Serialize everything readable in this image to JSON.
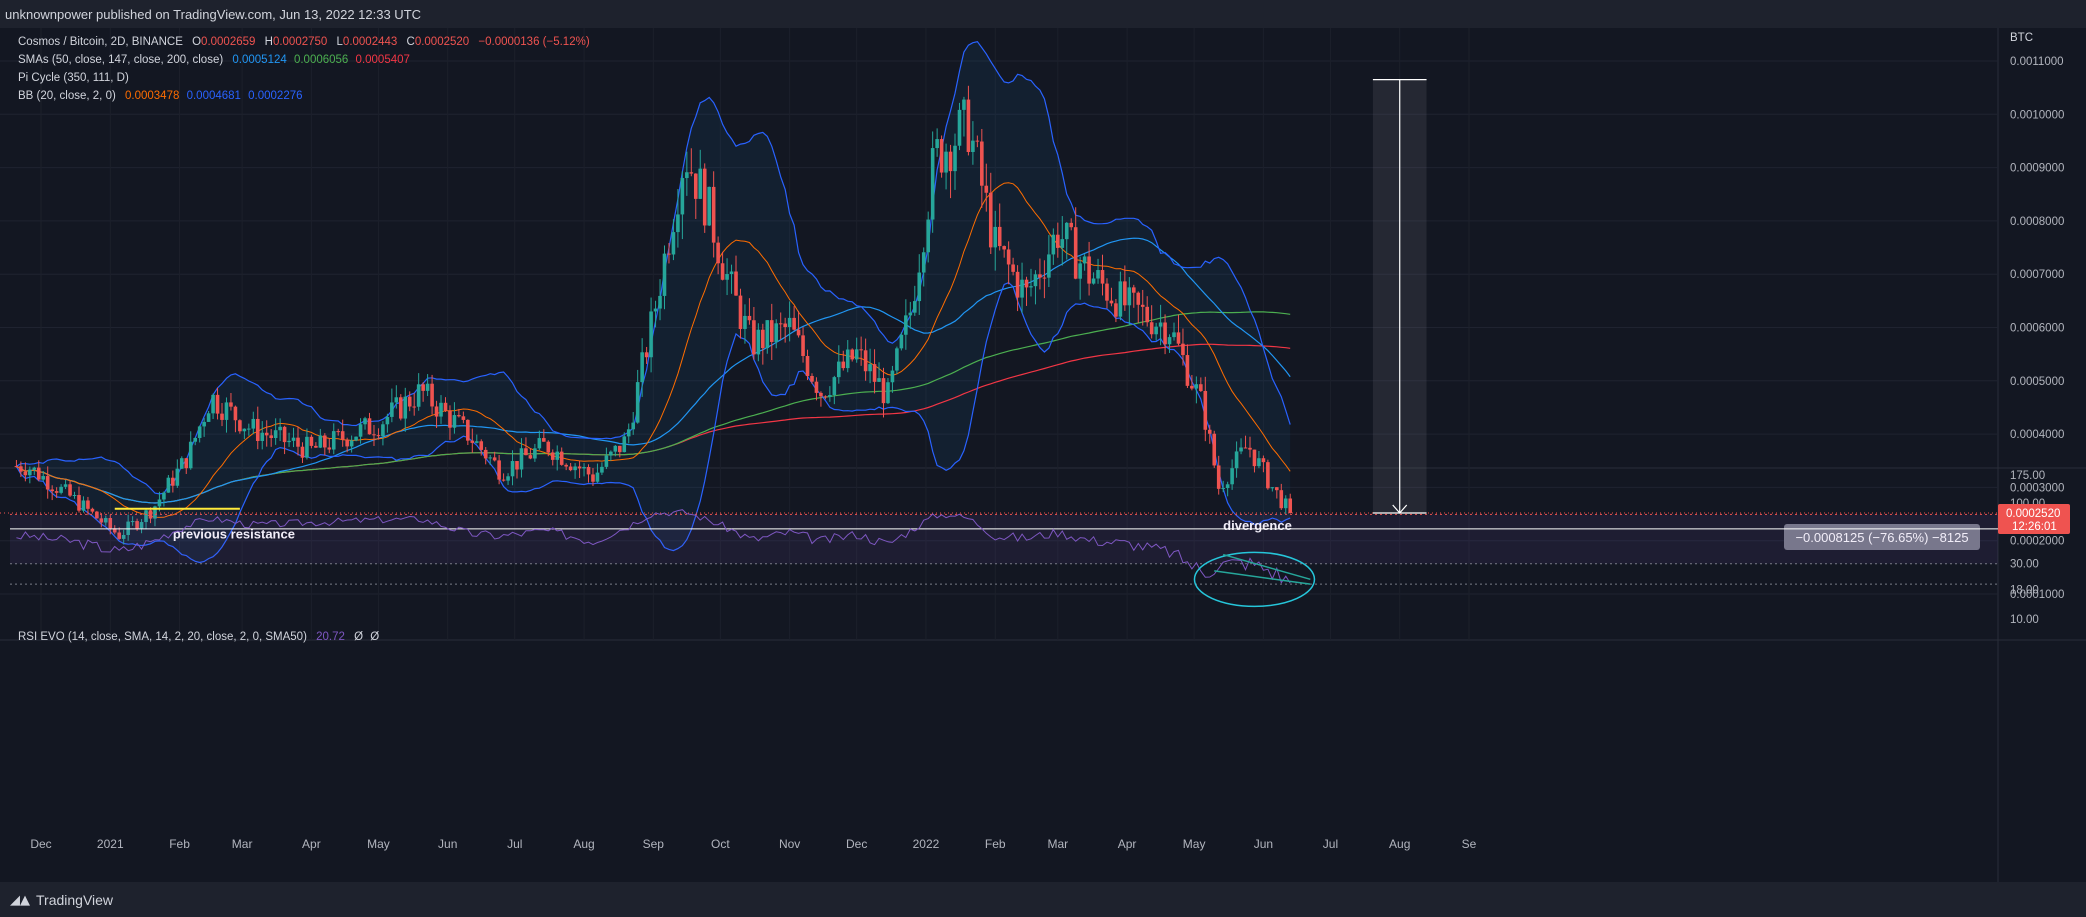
{
  "header": {
    "published": "unknownpower published on TradingView.com, Jun 13, 2022 12:33 UTC"
  },
  "footer": {
    "brand": "TradingView"
  },
  "legend": {
    "main": {
      "label": "Cosmos / Bitcoin, 2D, BINANCE",
      "o_label": "O",
      "o": "0.0002659",
      "h_label": "H",
      "h": "0.0002750",
      "l_label": "L",
      "l": "0.0002443",
      "c_label": "C",
      "c": "0.0002520",
      "chg": "−0.0000136 (−5.12%)"
    },
    "sma": {
      "label": "SMAs (50, close, 147, close, 200, close)",
      "v1": "0.0005124",
      "v2": "0.0006056",
      "v3": "0.0005407"
    },
    "pi": {
      "label": "Pi Cycle (350, 111, D)"
    },
    "bb": {
      "label": "BB (20, close, 2, 0)",
      "v1": "0.0003478",
      "v2": "0.0004681",
      "v3": "0.0002276"
    },
    "rsi": {
      "label": "RSI EVO (14, close, SMA, 14, 2, 20, close, 2, 0, SMA50)",
      "v1": "20.72",
      "v2": "Ø",
      "v3": "Ø"
    }
  },
  "annotations": {
    "previous_resistance": "previous resistance",
    "divergence": "divergence",
    "measure": "−0.0008125 (−76.65%) −8125"
  },
  "price_axis": {
    "unit": "BTC",
    "ticks": [
      "0.0011000",
      "0.0010000",
      "0.0009000",
      "0.0008000",
      "0.0007000",
      "0.0006000",
      "0.0005000",
      "0.0004000",
      "0.0003000",
      "0.0002000",
      "0.0001000"
    ],
    "last_price": "0.0002520",
    "countdown": "12:26:01"
  },
  "rsi_axis": {
    "ticks": [
      "175.00",
      "100.00",
      "60.00",
      "30.00",
      "18.00",
      "10.00"
    ]
  },
  "time_axis": {
    "labels": [
      "Dec",
      "2021",
      "Feb",
      "Mar",
      "Apr",
      "May",
      "Jun",
      "Jul",
      "Aug",
      "Sep",
      "Oct",
      "Nov",
      "Dec",
      "2022",
      "Feb",
      "Mar",
      "Apr",
      "May",
      "Jun",
      "Jul",
      "Aug",
      "Se"
    ]
  },
  "colors": {
    "bg": "#131722",
    "up": "#26a69a",
    "down": "#ef5350",
    "bb": "#2962ff",
    "sma50": "#2196f3",
    "sma147": "#4caf50",
    "sma200": "#f23645",
    "pi": "#ff6d00",
    "rsi": "#7e57c2"
  },
  "chart_data": {
    "type": "line",
    "x": [
      "2020-11-25",
      "2020-12-15",
      "2021-01-05",
      "2021-01-20",
      "2021-02-05",
      "2021-02-15",
      "2021-03-05",
      "2021-04-01",
      "2021-05-01",
      "2021-05-20",
      "2021-06-10",
      "2021-06-25",
      "2021-07-15",
      "2021-08-05",
      "2021-08-20",
      "2021-09-01",
      "2021-09-15",
      "2021-09-25",
      "2021-10-05",
      "2021-10-15",
      "2021-11-01",
      "2021-11-15",
      "2021-12-01",
      "2021-12-15",
      "2021-12-25",
      "2022-01-05",
      "2022-01-12",
      "2022-01-20",
      "2022-02-01",
      "2022-02-15",
      "2022-03-01",
      "2022-03-15",
      "2022-04-01",
      "2022-04-20",
      "2022-05-05",
      "2022-05-12",
      "2022-05-25",
      "2022-06-05",
      "2022-06-13"
    ],
    "series": [
      {
        "values": [
          0.00034,
          0.00028,
          0.00021,
          0.00026,
          0.00036,
          0.00047,
          0.00041,
          0.00037,
          0.00042,
          0.00048,
          0.0004,
          0.00033,
          0.00038,
          0.00032,
          0.00039,
          0.00062,
          0.00093,
          0.00083,
          0.00068,
          0.00057,
          0.0006,
          0.00048,
          0.00055,
          0.00047,
          0.00063,
          0.00092,
          0.00095,
          0.00098,
          0.00075,
          0.00066,
          0.00078,
          0.0007,
          0.00064,
          0.0006,
          0.00045,
          0.0003,
          0.00038,
          0.0003,
          0.000252
        ]
      }
    ],
    "ylim": [
      5e-05,
      0.00111
    ],
    "rsi": {
      "values": [
        52,
        47,
        38,
        47,
        65,
        74,
        65,
        68,
        72,
        73,
        55,
        52,
        58,
        47,
        62,
        82,
        84,
        72,
        60,
        48,
        56,
        47,
        54,
        44,
        58,
        78,
        80,
        74,
        52,
        50,
        56,
        48,
        45,
        38,
        25,
        30,
        31,
        26,
        20.72
      ],
      "ylim": [
        5,
        175
      ],
      "bands": [
        20,
        30,
        60,
        80
      ]
    }
  }
}
